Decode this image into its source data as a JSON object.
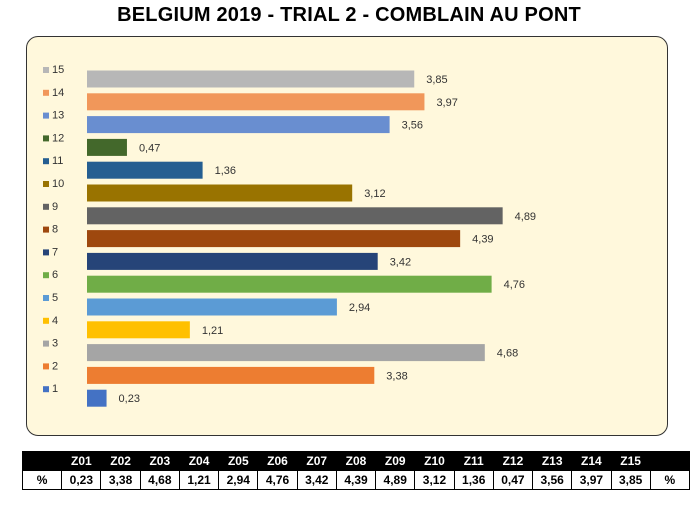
{
  "chart_data": {
    "type": "bar",
    "orientation": "horizontal",
    "title": "BELGIUM 2019 - TRIAL 2 - COMBLAIN AU PONT",
    "categories": [
      "1",
      "2",
      "3",
      "4",
      "5",
      "6",
      "7",
      "8",
      "9",
      "10",
      "11",
      "12",
      "13",
      "14",
      "15"
    ],
    "values": [
      0.23,
      3.38,
      4.68,
      1.21,
      2.94,
      4.76,
      3.42,
      4.39,
      4.89,
      3.12,
      1.36,
      0.47,
      3.56,
      3.97,
      3.85
    ],
    "value_labels": [
      "0,23",
      "3,38",
      "4,68",
      "1,21",
      "2,94",
      "4,76",
      "3,42",
      "4,39",
      "4,89",
      "3,12",
      "1,36",
      "0,47",
      "3,56",
      "3,97",
      "3,85"
    ],
    "colors": [
      "#4472c4",
      "#ed7d31",
      "#a5a5a5",
      "#ffc000",
      "#5b9bd5",
      "#70ad47",
      "#264478",
      "#9e480e",
      "#636363",
      "#997300",
      "#255e91",
      "#43682b",
      "#698ed0",
      "#f1975a",
      "#b7b7b7"
    ],
    "xlim": [
      0,
      5.5
    ],
    "grid": false,
    "legend": "left"
  },
  "table": {
    "headers": [
      "",
      "Z01",
      "Z02",
      "Z03",
      "Z04",
      "Z05",
      "Z06",
      "Z07",
      "Z08",
      "Z09",
      "Z10",
      "Z11",
      "Z12",
      "Z13",
      "Z14",
      "Z15",
      ""
    ],
    "row": [
      "%",
      "0,23",
      "3,38",
      "4,68",
      "1,21",
      "2,94",
      "4,76",
      "3,42",
      "4,39",
      "4,89",
      "3,12",
      "1,36",
      "0,47",
      "3,56",
      "3,97",
      "3,85",
      "%"
    ]
  }
}
